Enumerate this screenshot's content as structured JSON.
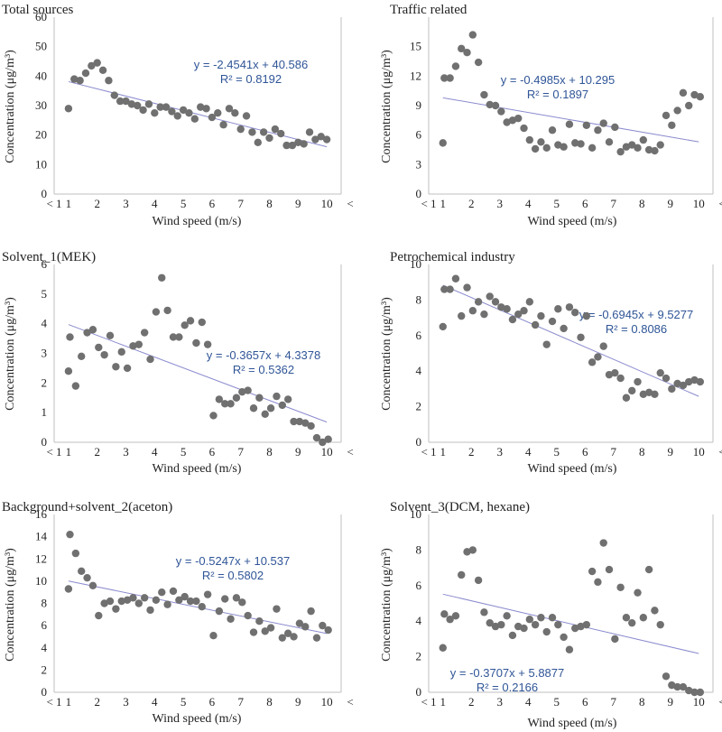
{
  "figure": {
    "xlabel": "Wind speed (m/s)",
    "ylabel": "Concentration (μg/m³)",
    "x_ticks": [
      "< 1",
      "1",
      "2",
      "3",
      "4",
      "5",
      "6",
      "7",
      "8",
      "9",
      "10",
      "<"
    ],
    "marker_color": "#707070",
    "trend_color": "#8b8bcf",
    "equation_color": "#2f5597",
    "frame_color": "#bfbfbf"
  },
  "chart_data": [
    {
      "type": "scatter",
      "title": "Total sources",
      "ylim": [
        0,
        60
      ],
      "yticks": [
        0,
        10,
        20,
        30,
        40,
        50,
        60
      ],
      "equation": "y = -2.4541x + 40.586",
      "r2": "R² = 0.8192",
      "trend": {
        "slope": -2.4541,
        "intercept": 40.586
      },
      "x": [
        1,
        1.2,
        1.4,
        1.6,
        1.8,
        2.0,
        2.2,
        2.4,
        2.6,
        2.8,
        3.0,
        3.2,
        3.4,
        3.6,
        3.8,
        4.0,
        4.2,
        4.4,
        4.6,
        4.8,
        5.0,
        5.2,
        5.4,
        5.6,
        5.8,
        6.0,
        6.2,
        6.4,
        6.6,
        6.8,
        7.0,
        7.2,
        7.4,
        7.6,
        7.8,
        8.0,
        8.2,
        8.4,
        8.6,
        8.8,
        9.0,
        9.2,
        9.4,
        9.6,
        9.8,
        10.0
      ],
      "y": [
        29,
        39,
        38.5,
        41,
        43.5,
        44.5,
        42,
        38.5,
        33.5,
        31.5,
        31.5,
        30.5,
        30,
        28.5,
        30.5,
        27.5,
        29.5,
        29.5,
        28,
        26.5,
        28.5,
        27.5,
        25.5,
        29.5,
        29,
        26,
        27.5,
        23.5,
        29,
        27.5,
        22,
        26.5,
        21,
        17.5,
        21,
        19,
        22,
        20.5,
        16.5,
        16.5,
        17.5,
        17,
        21,
        18.5,
        19.5,
        18.5
      ]
    },
    {
      "type": "scatter",
      "title": "Traffic related",
      "ylim": [
        0,
        18
      ],
      "yticks": [
        0,
        3,
        6,
        9,
        12,
        15
      ],
      "equation": "y = -0.4985x + 10.295",
      "r2": "R² = 0.1897",
      "trend": {
        "slope": -0.4985,
        "intercept": 10.295
      },
      "x": [
        1,
        1.05,
        1.25,
        1.45,
        1.65,
        1.85,
        2.05,
        2.25,
        2.45,
        2.65,
        2.85,
        3.05,
        3.25,
        3.45,
        3.65,
        3.85,
        4.05,
        4.25,
        4.45,
        4.65,
        4.85,
        5.05,
        5.25,
        5.45,
        5.65,
        5.85,
        6.05,
        6.25,
        6.45,
        6.65,
        6.85,
        7.05,
        7.25,
        7.45,
        7.65,
        7.85,
        8.05,
        8.25,
        8.45,
        8.65,
        8.85,
        9.05,
        9.25,
        9.45,
        9.65,
        9.85,
        10.05
      ],
      "y": [
        5.2,
        11.8,
        11.8,
        13.0,
        14.8,
        14.4,
        16.2,
        13.4,
        10.1,
        9.1,
        9.0,
        8.4,
        7.3,
        7.5,
        7.7,
        6.7,
        5.5,
        4.6,
        5.3,
        4.7,
        6.5,
        5.0,
        4.8,
        7.1,
        5.2,
        5.1,
        7.0,
        4.7,
        6.5,
        7.2,
        5.3,
        6.8,
        4.3,
        4.8,
        5.0,
        4.7,
        5.5,
        4.5,
        4.4,
        5.0,
        8.0,
        7.0,
        8.5,
        10.3,
        9.0,
        10.1,
        9.9
      ]
    },
    {
      "type": "scatter",
      "title": "Solvent_1(MEK)",
      "ylim": [
        0,
        6
      ],
      "yticks": [
        0,
        1,
        2,
        3,
        4,
        5,
        6
      ],
      "equation": "y = -0.3657x + 4.3378",
      "r2": "R² = 0.5362",
      "trend": {
        "slope": -0.3657,
        "intercept": 4.3378
      },
      "x": [
        1,
        1.05,
        1.25,
        1.45,
        1.65,
        1.85,
        2.05,
        2.25,
        2.45,
        2.65,
        2.85,
        3.05,
        3.25,
        3.45,
        3.65,
        3.85,
        4.05,
        4.25,
        4.45,
        4.65,
        4.85,
        5.05,
        5.25,
        5.45,
        5.65,
        5.85,
        6.05,
        6.25,
        6.45,
        6.65,
        6.85,
        7.05,
        7.25,
        7.45,
        7.65,
        7.85,
        8.05,
        8.25,
        8.45,
        8.65,
        8.85,
        9.05,
        9.25,
        9.45,
        9.65,
        9.85,
        10.05
      ],
      "y": [
        2.4,
        3.55,
        1.9,
        2.9,
        3.7,
        3.8,
        3.2,
        2.95,
        3.6,
        2.55,
        3.05,
        2.5,
        3.25,
        3.3,
        3.7,
        2.8,
        4.4,
        5.55,
        4.45,
        3.55,
        3.55,
        3.95,
        4.1,
        3.35,
        4.05,
        3.3,
        0.9,
        1.45,
        1.3,
        1.3,
        1.5,
        1.7,
        1.75,
        1.15,
        1.5,
        0.95,
        1.15,
        1.55,
        1.25,
        1.45,
        0.7,
        0.7,
        0.65,
        0.55,
        0.15,
        0.0,
        0.1
      ]
    },
    {
      "type": "scatter",
      "title": "Petrochemical industry",
      "ylim": [
        0,
        10
      ],
      "yticks": [
        0,
        2,
        4,
        6,
        8,
        10
      ],
      "equation": "y = -0.6945x + 9.5277",
      "r2": "R² = 0.8086",
      "trend": {
        "slope": -0.6945,
        "intercept": 9.5277
      },
      "x": [
        1,
        1.05,
        1.25,
        1.45,
        1.65,
        1.85,
        2.05,
        2.25,
        2.45,
        2.65,
        2.85,
        3.05,
        3.25,
        3.45,
        3.65,
        3.85,
        4.05,
        4.25,
        4.45,
        4.65,
        4.85,
        5.05,
        5.25,
        5.45,
        5.65,
        5.85,
        6.05,
        6.25,
        6.45,
        6.65,
        6.85,
        7.05,
        7.25,
        7.45,
        7.65,
        7.85,
        8.05,
        8.25,
        8.45,
        8.65,
        8.85,
        9.05,
        9.25,
        9.45,
        9.65,
        9.85,
        10.05
      ],
      "y": [
        6.5,
        8.6,
        8.6,
        9.2,
        7.1,
        8.7,
        7.4,
        7.9,
        7.2,
        8.2,
        7.9,
        7.6,
        7.5,
        6.9,
        7.2,
        7.4,
        7.9,
        6.6,
        7.1,
        5.5,
        6.8,
        7.5,
        6.4,
        7.6,
        7.3,
        5.9,
        7.1,
        4.5,
        4.8,
        5.4,
        3.8,
        3.9,
        3.6,
        2.5,
        2.9,
        3.4,
        2.7,
        2.8,
        2.7,
        3.9,
        3.6,
        3.0,
        3.3,
        3.2,
        3.4,
        3.5,
        3.4
      ]
    },
    {
      "type": "scatter",
      "title": "Background+solvent_2(aceton)",
      "ylim": [
        0,
        16
      ],
      "yticks": [
        0,
        2,
        4,
        6,
        8,
        10,
        12,
        14,
        16
      ],
      "equation": "y = -0.5247x + 10.537",
      "r2": "R² = 0.5802",
      "trend": {
        "slope": -0.5247,
        "intercept": 10.537
      },
      "x": [
        1,
        1.05,
        1.25,
        1.45,
        1.65,
        1.85,
        2.05,
        2.25,
        2.45,
        2.65,
        2.85,
        3.05,
        3.25,
        3.45,
        3.65,
        3.85,
        4.05,
        4.25,
        4.45,
        4.65,
        4.85,
        5.05,
        5.25,
        5.45,
        5.65,
        5.85,
        6.05,
        6.25,
        6.45,
        6.65,
        6.85,
        7.05,
        7.25,
        7.45,
        7.65,
        7.85,
        8.05,
        8.25,
        8.45,
        8.65,
        8.85,
        9.05,
        9.25,
        9.45,
        9.65,
        9.85,
        10.05
      ],
      "y": [
        9.3,
        14.2,
        12.5,
        10.9,
        10.3,
        9.6,
        6.9,
        8.0,
        8.2,
        7.5,
        8.2,
        8.3,
        8.5,
        8.0,
        8.5,
        7.4,
        8.3,
        9.0,
        7.9,
        9.1,
        8.3,
        8.6,
        8.2,
        8.2,
        7.7,
        8.8,
        5.1,
        7.3,
        8.4,
        6.6,
        8.5,
        8.1,
        6.9,
        5.4,
        6.4,
        5.5,
        5.8,
        7.5,
        4.9,
        5.3,
        5.0,
        6.2,
        5.9,
        7.3,
        4.9,
        6.0,
        5.6
      ]
    },
    {
      "type": "scatter",
      "title": "Solvent_3(DCM, hexane)",
      "ylim": [
        0,
        10
      ],
      "yticks": [
        0,
        2,
        4,
        6,
        8,
        10
      ],
      "equation": "y = -0.3707x + 5.8877",
      "r2": "R² = 0.2166",
      "trend": {
        "slope": -0.3707,
        "intercept": 5.8877
      },
      "x": [
        1,
        1.05,
        1.25,
        1.45,
        1.65,
        1.85,
        2.05,
        2.25,
        2.45,
        2.65,
        2.85,
        3.05,
        3.25,
        3.45,
        3.65,
        3.85,
        4.05,
        4.25,
        4.45,
        4.65,
        4.85,
        5.05,
        5.25,
        5.45,
        5.65,
        5.85,
        6.05,
        6.25,
        6.45,
        6.65,
        6.85,
        7.05,
        7.25,
        7.45,
        7.65,
        7.85,
        8.05,
        8.25,
        8.45,
        8.65,
        8.85,
        9.05,
        9.25,
        9.45,
        9.65,
        9.85,
        10.05
      ],
      "y": [
        2.5,
        4.4,
        4.1,
        4.3,
        6.6,
        7.9,
        8.0,
        6.3,
        4.5,
        3.9,
        3.7,
        3.8,
        4.3,
        3.2,
        3.7,
        3.6,
        4.1,
        3.8,
        4.2,
        3.4,
        4.2,
        3.8,
        3.1,
        2.4,
        3.6,
        3.7,
        3.8,
        6.8,
        6.2,
        8.4,
        6.9,
        3.0,
        5.9,
        4.2,
        3.9,
        5.6,
        4.2,
        6.9,
        4.6,
        3.8,
        0.9,
        0.4,
        0.3,
        0.3,
        0.1,
        0.0,
        0.0
      ]
    }
  ]
}
